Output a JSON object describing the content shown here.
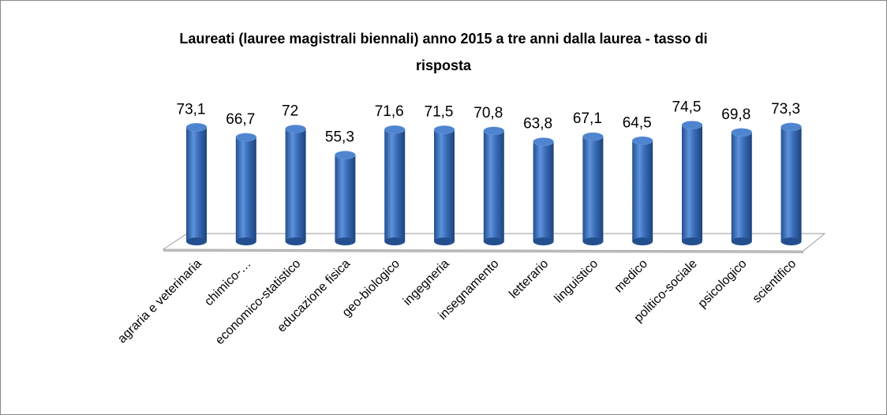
{
  "chart_data": {
    "type": "bar",
    "title_lines": [
      "Laureati (lauree magistrali biennali) anno 2015 a tre anni dalla laurea - tasso di",
      "risposta"
    ],
    "categories": [
      "agraria e veterinaria",
      "chimico-…",
      "economico-statistico",
      "educazione fisica",
      "geo-biologico",
      "ingegneria",
      "insegnamento",
      "letterario",
      "linguistico",
      "medico",
      "politico-sociale",
      "psicologico",
      "scientifico"
    ],
    "values": [
      73.1,
      66.7,
      72,
      55.3,
      71.6,
      71.5,
      70.8,
      63.8,
      67.1,
      64.5,
      74.5,
      69.8,
      73.3
    ],
    "value_labels": [
      "73,1",
      "66,7",
      "72",
      "55,3",
      "71,6",
      "71,5",
      "70,8",
      "63,8",
      "67,1",
      "64,5",
      "74,5",
      "69,8",
      "73,3"
    ],
    "color": "#3a6cb8"
  }
}
